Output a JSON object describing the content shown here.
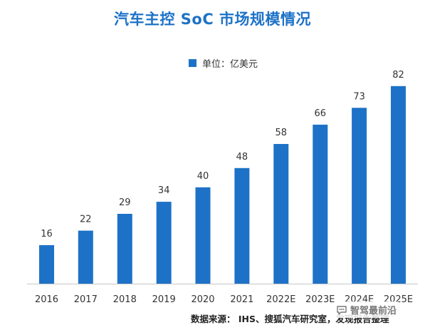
{
  "chart_data": {
    "type": "bar",
    "title": "汽车主控 SoC 市场规模情况",
    "legend": "单位：亿美元",
    "categories": [
      "2016",
      "2017",
      "2018",
      "2019",
      "2020",
      "2021",
      "2022E",
      "2023E",
      "2024E",
      "2025E"
    ],
    "series": [
      {
        "values": [
          16,
          22,
          29,
          34,
          40,
          48,
          58,
          66,
          73,
          82
        ]
      }
    ],
    "xlabel": "",
    "ylabel": "",
    "ylim": [
      0,
      90
    ],
    "grid": false,
    "legend_position": "top-center",
    "bar_color": "#1d72c7"
  },
  "footer": {
    "source": "数据来源： IHS、搜狐汽车研究室，发现报告整理",
    "watermark": "智驾最前沿"
  },
  "colors": {
    "accent": "#1d72c7",
    "axis": "#c8c8c8"
  },
  "icons": {
    "watermark": "chat-bubble-icon"
  }
}
